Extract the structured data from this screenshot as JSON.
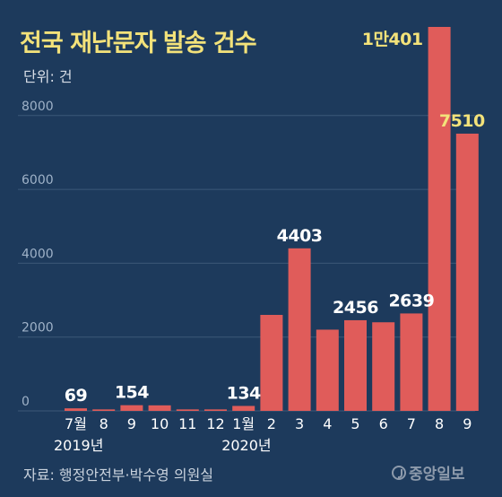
{
  "title": "전국 재난문자 발송 건수",
  "unit_label": "단위: 건",
  "source": "자료: 행정안전부·박수영 의원실",
  "brand": "중앙일보",
  "colors": {
    "background": "#1d3a5c",
    "bar": "#e05c5a",
    "title": "#f3e27a",
    "label_highlight": "#f3e27a",
    "label_normal": "#ffffff",
    "grid": "#3d5878",
    "axis_text": "#ffffff",
    "tick_text": "#9fb2c8"
  },
  "chart_data": {
    "type": "bar",
    "categories": [
      "7월",
      "8",
      "9",
      "10",
      "11",
      "12",
      "1월",
      "2",
      "3",
      "4",
      "5",
      "6",
      "7",
      "8",
      "9"
    ],
    "year_labels": [
      {
        "text": "2019년",
        "category_index": 0
      },
      {
        "text": "2020년",
        "category_index": 6
      }
    ],
    "values": [
      69,
      40,
      154,
      150,
      40,
      40,
      134,
      2600,
      4403,
      2200,
      2456,
      2400,
      2639,
      10401,
      7510
    ],
    "data_labels": [
      {
        "index": 0,
        "text": "69",
        "highlight": false
      },
      {
        "index": 2,
        "text": "154",
        "highlight": false
      },
      {
        "index": 6,
        "text": "134",
        "highlight": false
      },
      {
        "index": 8,
        "text": "4403",
        "highlight": false
      },
      {
        "index": 10,
        "text": "2456",
        "highlight": false
      },
      {
        "index": 12,
        "text": "2639",
        "highlight": false
      },
      {
        "index": 13,
        "text": "1만401",
        "highlight": true
      },
      {
        "index": 14,
        "text": "7510",
        "highlight": true
      }
    ],
    "yticks": [
      "0",
      "2000",
      "4000",
      "6000",
      "8000"
    ],
    "ylim": [
      0,
      10401
    ],
    "grid": true,
    "legend": "none"
  }
}
